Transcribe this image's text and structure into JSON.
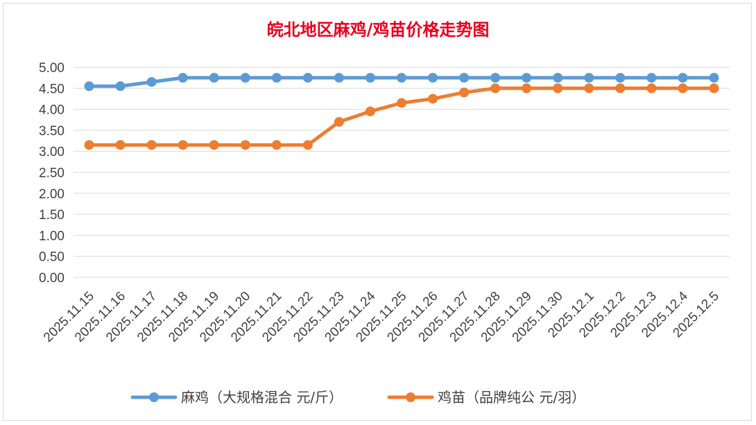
{
  "chart_data": {
    "type": "line",
    "title": "皖北地区麻鸡/鸡苗价格走势图",
    "categories": [
      "2025.11.15",
      "2025.11.16",
      "2025.11.17",
      "2025.11.18",
      "2025.11.19",
      "2025.11.20",
      "2025.11.21",
      "2025.11.22",
      "2025.11.23",
      "2025.11.24",
      "2025.11.25",
      "2025.11.26",
      "2025.11.27",
      "2025.11.28",
      "2025.11.29",
      "2025.11.30",
      "2025.12.1",
      "2025.12.2",
      "2025.12.3",
      "2025.12.4",
      "2025.12.5"
    ],
    "ylim": [
      0,
      5
    ],
    "yticks": [
      "0.00",
      "0.50",
      "1.00",
      "1.50",
      "2.00",
      "2.50",
      "3.00",
      "3.50",
      "4.00",
      "4.50",
      "5.00"
    ],
    "grid": true,
    "legend_position": "bottom",
    "series": [
      {
        "name": "麻鸡（大规格混合 元/斤）",
        "color": "#5b9bd5",
        "values": [
          4.55,
          4.55,
          4.65,
          4.75,
          4.75,
          4.75,
          4.75,
          4.75,
          4.75,
          4.75,
          4.75,
          4.75,
          4.75,
          4.75,
          4.75,
          4.75,
          4.75,
          4.75,
          4.75,
          4.75,
          4.75
        ]
      },
      {
        "name": "鸡苗（品牌纯公 元/羽）",
        "color": "#ed7d31",
        "values": [
          3.15,
          3.15,
          3.15,
          3.15,
          3.15,
          3.15,
          3.15,
          3.15,
          3.7,
          3.95,
          4.15,
          4.25,
          4.4,
          4.5,
          4.5,
          4.5,
          4.5,
          4.5,
          4.5,
          4.5,
          4.5
        ]
      }
    ]
  }
}
